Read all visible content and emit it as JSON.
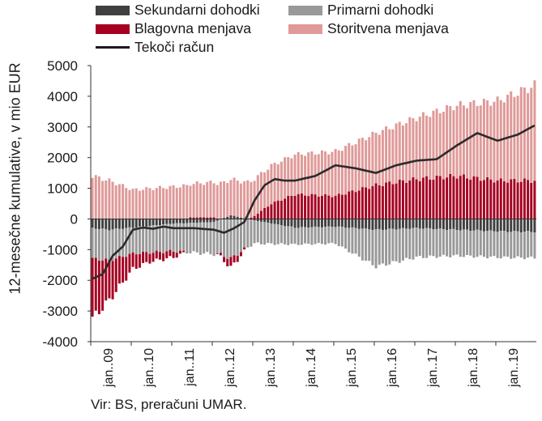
{
  "chart_data": {
    "type": "stacked bar with line",
    "ylabel": "12-mesečne kumulative, v mio EUR",
    "ylim": [
      -4000,
      5000
    ],
    "y_ticks": [
      "5000",
      "4000",
      "3000",
      "2000",
      "1000",
      "0",
      "-1000",
      "-2000",
      "-3000",
      "-4000"
    ],
    "x_tick_labels": [
      "jan..09",
      "jan..10",
      "jan..11",
      "jan..12",
      "jan..13",
      "jan..14",
      "jan..15",
      "jan..16",
      "jan..17",
      "jan..18",
      "jan..19"
    ],
    "x_start": "2009-01",
    "x_end": "2019-12",
    "legend_position": "top",
    "series": [
      {
        "name": "Sekundarni dohodki",
        "type": "bar",
        "color": "#404040",
        "points": [
          [
            "2009-01",
            -300
          ],
          [
            "2009-06",
            -350
          ],
          [
            "2010-01",
            -280
          ],
          [
            "2011-01",
            -150
          ],
          [
            "2012-01",
            -100
          ],
          [
            "2012-06",
            120
          ],
          [
            "2013-01",
            -50
          ],
          [
            "2014-01",
            -280
          ],
          [
            "2015-01",
            -250
          ],
          [
            "2016-01",
            -350
          ],
          [
            "2017-01",
            -300
          ],
          [
            "2018-01",
            -350
          ],
          [
            "2019-01",
            -400
          ],
          [
            "2019-12",
            -420
          ]
        ]
      },
      {
        "name": "Primarni dohodki",
        "type": "bar",
        "color": "#999999",
        "points": [
          [
            "2009-01",
            -1000
          ],
          [
            "2009-06",
            -1000
          ],
          [
            "2010-01",
            -850
          ],
          [
            "2011-01",
            -900
          ],
          [
            "2012-01",
            -1050
          ],
          [
            "2012-06",
            -1300
          ],
          [
            "2013-01",
            -750
          ],
          [
            "2014-01",
            -550
          ],
          [
            "2015-01",
            -550
          ],
          [
            "2016-01",
            -1200
          ],
          [
            "2017-01",
            -950
          ],
          [
            "2018-01",
            -850
          ],
          [
            "2019-01",
            -850
          ],
          [
            "2019-12",
            -850
          ]
        ]
      },
      {
        "name": "Blagovna menjava",
        "type": "bar",
        "color": "#a50021",
        "points": [
          [
            "2009-01",
            -1950
          ],
          [
            "2009-06",
            -1300
          ],
          [
            "2010-01",
            -500
          ],
          [
            "2010-06",
            -300
          ],
          [
            "2011-01",
            -200
          ],
          [
            "2011-06",
            50
          ],
          [
            "2012-01",
            50
          ],
          [
            "2012-06",
            -300
          ],
          [
            "2013-01",
            100
          ],
          [
            "2013-06",
            500
          ],
          [
            "2014-01",
            800
          ],
          [
            "2015-01",
            750
          ],
          [
            "2016-01",
            1100
          ],
          [
            "2017-01",
            1300
          ],
          [
            "2018-01",
            1400
          ],
          [
            "2019-01",
            1250
          ],
          [
            "2019-12",
            1250
          ]
        ]
      },
      {
        "name": "Storitvena menjava",
        "type": "bar",
        "color": "#df9a99",
        "points": [
          [
            "2009-01",
            1400
          ],
          [
            "2009-06",
            1250
          ],
          [
            "2010-01",
            950
          ],
          [
            "2011-01",
            1050
          ],
          [
            "2012-01",
            1150
          ],
          [
            "2013-01",
            1200
          ],
          [
            "2014-01",
            1300
          ],
          [
            "2015-01",
            1450
          ],
          [
            "2016-01",
            1700
          ],
          [
            "2017-01",
            2000
          ],
          [
            "2018-01",
            2300
          ],
          [
            "2019-01",
            2600
          ],
          [
            "2019-12",
            3100
          ]
        ]
      },
      {
        "name": "Tekoči račun",
        "type": "line",
        "color": "#2b2b2b",
        "points": [
          [
            "2009-01",
            -1950
          ],
          [
            "2009-04",
            -1800
          ],
          [
            "2009-07",
            -1200
          ],
          [
            "2009-10",
            -900
          ],
          [
            "2010-01",
            -350
          ],
          [
            "2010-04",
            -280
          ],
          [
            "2010-07",
            -320
          ],
          [
            "2010-10",
            -250
          ],
          [
            "2011-01",
            -300
          ],
          [
            "2011-07",
            -300
          ],
          [
            "2012-01",
            -350
          ],
          [
            "2012-04",
            -450
          ],
          [
            "2012-07",
            -300
          ],
          [
            "2012-10",
            -100
          ],
          [
            "2013-01",
            600
          ],
          [
            "2013-04",
            1100
          ],
          [
            "2013-07",
            1300
          ],
          [
            "2013-10",
            1250
          ],
          [
            "2014-01",
            1250
          ],
          [
            "2014-07",
            1400
          ],
          [
            "2015-01",
            1750
          ],
          [
            "2015-07",
            1650
          ],
          [
            "2016-01",
            1500
          ],
          [
            "2016-07",
            1750
          ],
          [
            "2017-01",
            1900
          ],
          [
            "2017-07",
            1950
          ],
          [
            "2018-01",
            2400
          ],
          [
            "2018-07",
            2800
          ],
          [
            "2019-01",
            2550
          ],
          [
            "2019-07",
            2750
          ],
          [
            "2019-12",
            3050
          ]
        ]
      }
    ]
  },
  "source": "Vir: BS, preračuni UMAR."
}
